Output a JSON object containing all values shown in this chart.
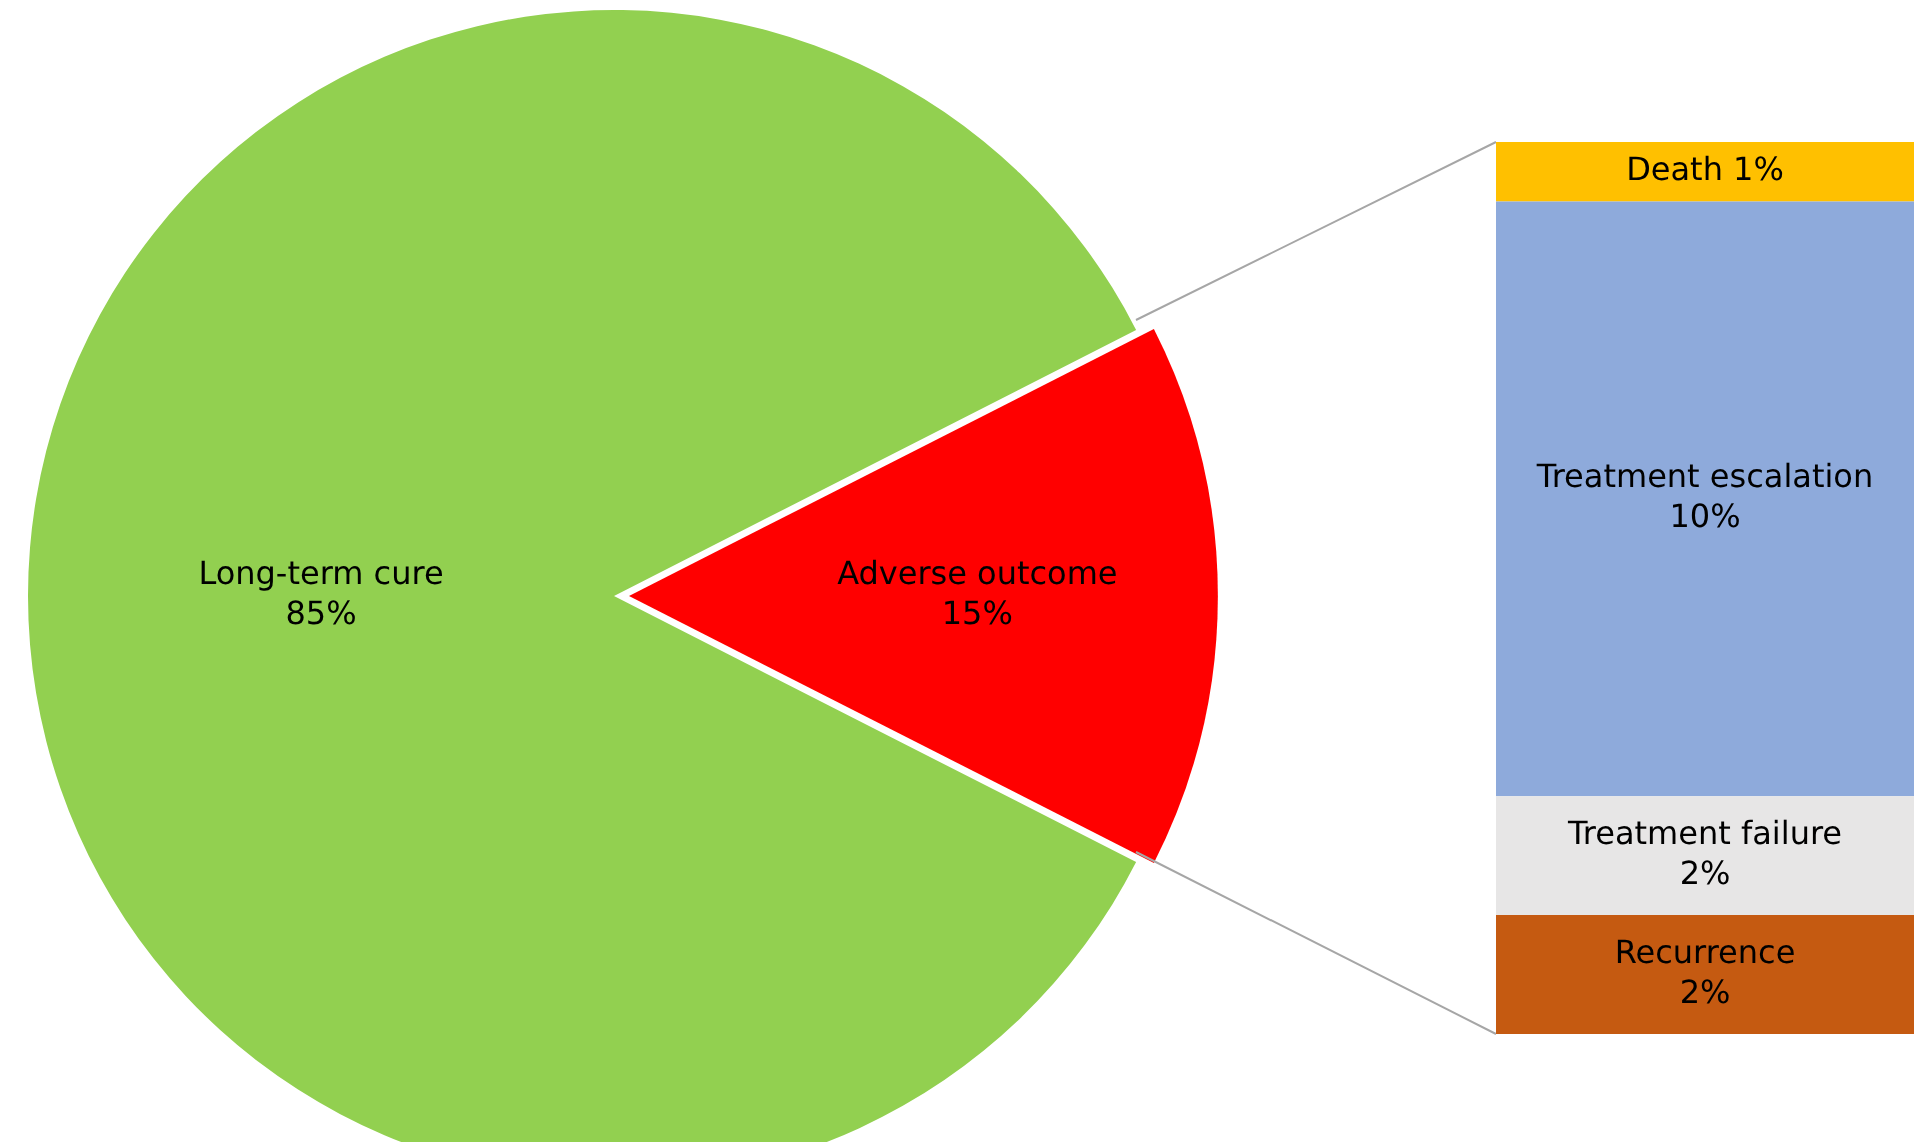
{
  "chart_data": [
    {
      "type": "pie",
      "categories": [
        "Long-term cure",
        "Adverse outcome"
      ],
      "values": [
        85,
        15
      ],
      "colors": [
        "#92d050",
        "#ff0000"
      ],
      "value_labels": [
        "85%",
        "15%"
      ]
    },
    {
      "type": "bar",
      "stacked": true,
      "categories": [
        null
      ],
      "tick_labels": false,
      "series": [
        {
          "name": "Recurrence",
          "color": "#c55a11",
          "values": [
            2
          ],
          "value_labels": [
            "2%"
          ]
        },
        {
          "name": "Treatment failure",
          "color": "#e7e6e6",
          "values": [
            2
          ],
          "value_labels": [
            "2%"
          ]
        },
        {
          "name": "Treatment escalation",
          "color": "#8eaadb",
          "values": [
            10
          ],
          "value_labels": [
            "10%"
          ]
        },
        {
          "name": "Death",
          "color": "#ffc000",
          "values": [
            1
          ],
          "value_labels": [
            "1%"
          ]
        }
      ]
    }
  ]
}
